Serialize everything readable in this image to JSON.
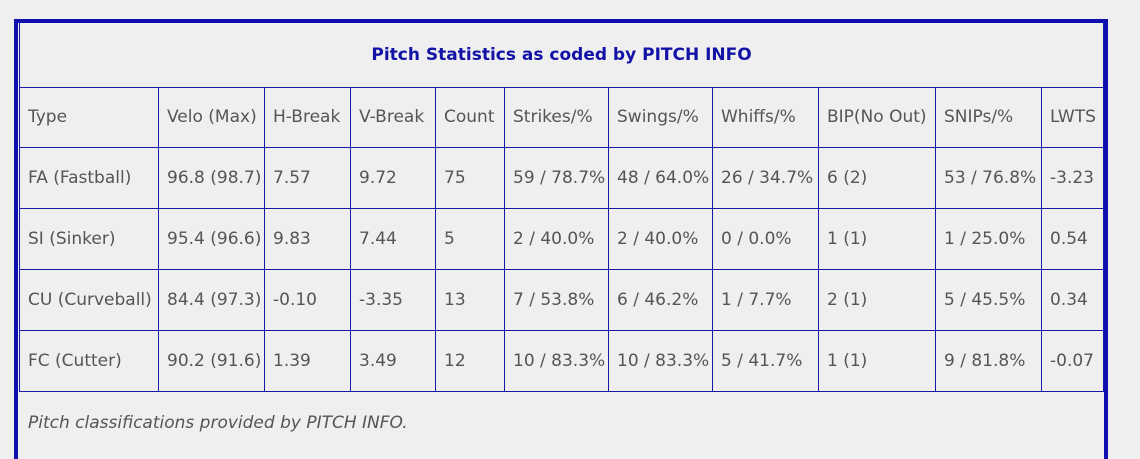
{
  "table": {
    "title": "Pitch Statistics as coded by PITCH INFO",
    "headers": [
      "Type",
      "Velo (Max)",
      "H-Break",
      "V-Break",
      "Count",
      "Strikes/%",
      "Swings/%",
      "Whiffs/%",
      "BIP(No Out)",
      "SNIPs/%",
      "LWTS"
    ],
    "rows": [
      [
        "FA (Fastball)",
        "96.8 (98.7)",
        "7.57",
        "9.72",
        "75",
        "59 / 78.7%",
        "48 / 64.0%",
        "26 / 34.7%",
        "6 (2)",
        "53 / 76.8%",
        "-3.23"
      ],
      [
        "SI (Sinker)",
        "95.4 (96.6)",
        "9.83",
        "7.44",
        "5",
        "2 / 40.0%",
        "2 / 40.0%",
        "0 / 0.0%",
        "1 (1)",
        "1 / 25.0%",
        "0.54"
      ],
      [
        "CU (Curveball)",
        "84.4 (97.3)",
        "-0.10",
        "-3.35",
        "13",
        "7 / 53.8%",
        "6 / 46.2%",
        "1 / 7.7%",
        "2 (1)",
        "5 / 45.5%",
        "0.34"
      ],
      [
        "FC (Cutter)",
        "90.2 (91.6)",
        "1.39",
        "3.49",
        "12",
        "10 / 83.3%",
        "10 / 83.3%",
        "5 / 41.7%",
        "1 (1)",
        "9 / 81.8%",
        "-0.07"
      ]
    ],
    "footnote": "Pitch classifications provided by PITCH INFO."
  },
  "colors": {
    "border": "#1a1aa8",
    "title": "#1212a6",
    "text": "#555555",
    "background": "#efefef"
  }
}
